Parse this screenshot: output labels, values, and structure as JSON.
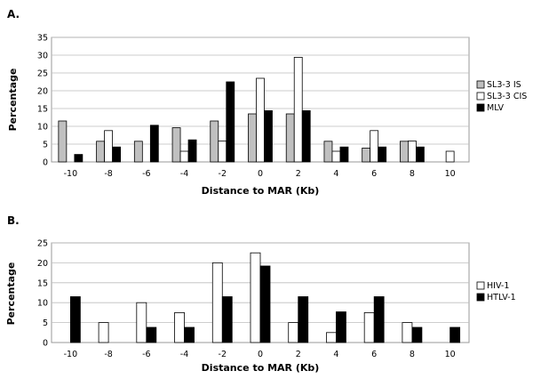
{
  "chart_data": [
    {
      "panel_label": "A.",
      "type": "bar",
      "categories": [
        "-10",
        "-8",
        "-6",
        "-4",
        "-2",
        "0",
        "2",
        "4",
        "6",
        "8",
        "10"
      ],
      "series": [
        {
          "name": "SL3-3 IS",
          "color": "#c0c0c0",
          "values": [
            11.5,
            5.8,
            5.8,
            9.6,
            11.5,
            13.5,
            13.5,
            5.8,
            3.9,
            5.8,
            0
          ]
        },
        {
          "name": "SL3-3 CIS",
          "color": "#ffffff",
          "values": [
            0,
            8.8,
            0,
            3,
            5.9,
            23.5,
            29.4,
            3,
            8.8,
            5.9,
            3
          ]
        },
        {
          "name": "MLV",
          "color": "#000000",
          "values": [
            2.1,
            4.2,
            10.3,
            6.2,
            22.5,
            14.4,
            14.4,
            4.2,
            4.2,
            4.2,
            0
          ]
        }
      ],
      "ylabel": "Percentage",
      "xlabel": "Distance to MAR (Kb)",
      "ylim": [
        0,
        35
      ],
      "yticks": [
        "0",
        "5",
        "10",
        "15",
        "20",
        "25",
        "30",
        "35"
      ],
      "grid": true,
      "legend": "right"
    },
    {
      "panel_label": "B.",
      "type": "bar",
      "categories": [
        "-10",
        "-8",
        "-6",
        "-4",
        "-2",
        "0",
        "2",
        "4",
        "6",
        "8",
        "10"
      ],
      "series": [
        {
          "name": "HIV-1",
          "color": "#ffffff",
          "values": [
            0,
            5,
            10,
            7.5,
            20,
            22.5,
            5,
            2.5,
            7.5,
            5,
            0
          ]
        },
        {
          "name": "HTLV-1",
          "color": "#000000",
          "values": [
            11.5,
            0,
            3.8,
            3.8,
            11.5,
            19.2,
            11.5,
            7.7,
            11.5,
            3.8,
            3.8
          ]
        }
      ],
      "ylabel": "Percentage",
      "xlabel": "Distance to MAR (Kb)",
      "ylim": [
        0,
        25
      ],
      "yticks": [
        "0",
        "5",
        "10",
        "15",
        "20",
        "25"
      ],
      "grid": true,
      "legend": "right"
    }
  ]
}
